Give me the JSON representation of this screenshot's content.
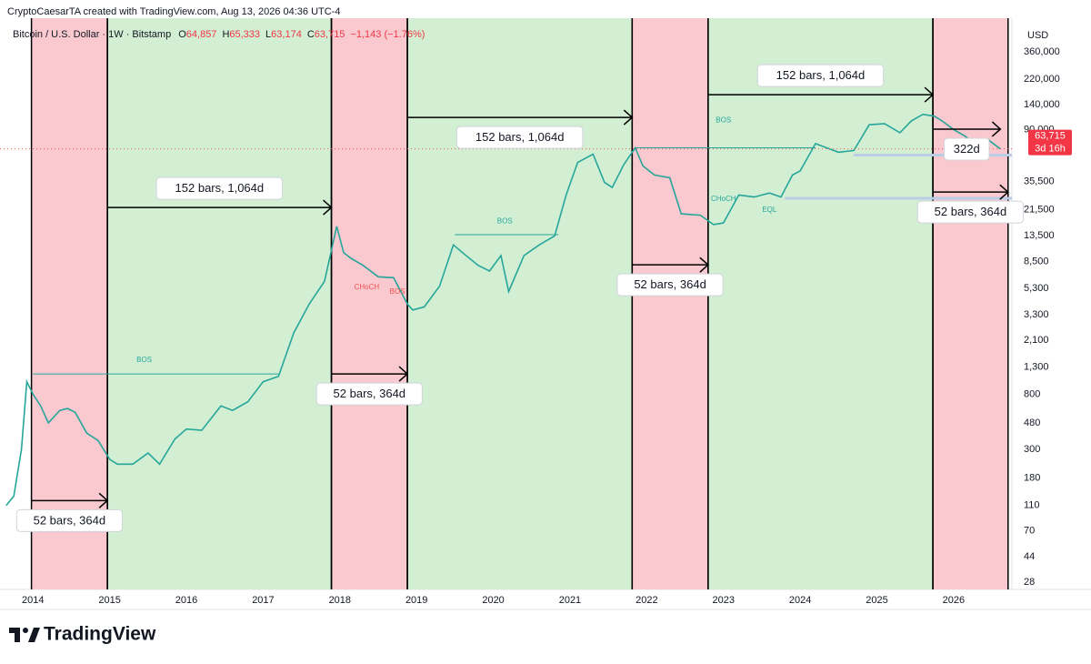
{
  "header": "CryptoCaesarTA created with TradingView.com, Aug 13, 2026 04:36 UTC-4",
  "footer": "TradingView",
  "chart_data": {
    "type": "line",
    "title": "Bitcoin / U.S. Dollar · 1W · Bitstamp",
    "ohlc": [
      {
        "key": "O",
        "value": "64,857"
      },
      {
        "key": "H",
        "value": "65,333"
      },
      {
        "key": "L",
        "value": "63,174"
      },
      {
        "key": "C",
        "value": "63,715"
      }
    ],
    "change": "−1,143 (−1.76%)",
    "axis_unit": "USD",
    "yscale": "log",
    "grid": false,
    "color": "#26a69a",
    "xlim": [
      2013.57,
      2026.76
    ],
    "xticks": [
      2014,
      2015,
      2016,
      2017,
      2018,
      2019,
      2020,
      2021,
      2022,
      2023,
      2024,
      2025,
      2026
    ],
    "ylim": [
      24.6,
      656000
    ],
    "yticks": [
      28,
      44,
      70,
      110,
      180,
      300,
      480,
      800,
      {
        "value": 1300,
        "label": "1,300"
      },
      {
        "value": 2100,
        "label": "2,100"
      },
      {
        "value": 3300,
        "label": "3,300"
      },
      {
        "value": 5300,
        "label": "5,300"
      },
      {
        "value": 8500,
        "label": "8,500"
      },
      {
        "value": 13500,
        "label": "13,500"
      },
      {
        "value": 21500,
        "label": "21,500"
      },
      {
        "value": 35500,
        "label": "35,500"
      },
      {
        "value": 90000,
        "label": "90,000"
      },
      {
        "value": 140000,
        "label": "140,000"
      },
      {
        "value": 220000,
        "label": "220,000"
      },
      {
        "value": 360000,
        "label": "360,000"
      }
    ],
    "x": [
      2013.65,
      2013.75,
      2013.85,
      2013.92,
      2014.0,
      2014.1,
      2014.2,
      2014.35,
      2014.45,
      2014.55,
      2014.7,
      2014.85,
      2015.0,
      2015.1,
      2015.3,
      2015.5,
      2015.65,
      2015.85,
      2016.0,
      2016.2,
      2016.45,
      2016.6,
      2016.8,
      2017.0,
      2017.2,
      2017.4,
      2017.6,
      2017.8,
      2017.96,
      2018.05,
      2018.15,
      2018.3,
      2018.5,
      2018.7,
      2018.88,
      2018.95,
      2019.1,
      2019.3,
      2019.48,
      2019.6,
      2019.8,
      2019.95,
      2020.1,
      2020.2,
      2020.4,
      2020.6,
      2020.8,
      2020.95,
      2021.1,
      2021.3,
      2021.45,
      2021.55,
      2021.7,
      2021.85,
      2021.95,
      2022.1,
      2022.3,
      2022.45,
      2022.7,
      2022.87,
      2023.0,
      2023.2,
      2023.4,
      2023.6,
      2023.75,
      2023.9,
      2024.0,
      2024.2,
      2024.5,
      2024.7,
      2024.9,
      2025.1,
      2025.3,
      2025.45,
      2025.6,
      2025.75,
      2025.85,
      2026.0,
      2026.15,
      2026.3,
      2026.45,
      2026.61
    ],
    "values": [
      110,
      130,
      300,
      1000,
      800,
      650,
      480,
      600,
      620,
      580,
      400,
      350,
      250,
      230,
      230,
      280,
      230,
      360,
      430,
      420,
      650,
      600,
      700,
      1000,
      1100,
      2400,
      4000,
      6000,
      16000,
      10000,
      9000,
      8000,
      6500,
      6400,
      4000,
      3600,
      3800,
      5500,
      11500,
      10000,
      8000,
      7200,
      9500,
      5000,
      9500,
      11500,
      13500,
      28000,
      50000,
      58000,
      35000,
      32000,
      48000,
      65000,
      47000,
      40000,
      38000,
      20000,
      19500,
      16500,
      17000,
      28000,
      27000,
      29000,
      27000,
      40000,
      43000,
      70000,
      60000,
      62000,
      98000,
      100000,
      85000,
      105000,
      118000,
      114000,
      105000,
      90000,
      80000,
      68000,
      75000,
      63715
    ],
    "countdown": "3d 16h",
    "zones": [
      {
        "start": 2013.98,
        "end": 2014.97,
        "color": "#f9c9cf"
      },
      {
        "start": 2014.97,
        "end": 2017.89,
        "color": "#d3efd3"
      },
      {
        "start": 2017.89,
        "end": 2018.88,
        "color": "#f9c9cf"
      },
      {
        "start": 2018.88,
        "end": 2021.81,
        "color": "#d3efd3"
      },
      {
        "start": 2021.81,
        "end": 2022.8,
        "color": "#f9c9cf"
      },
      {
        "start": 2022.8,
        "end": 2025.73,
        "color": "#d3efd3"
      },
      {
        "start": 2025.73,
        "end": 2026.71,
        "color": "#f9c9cf"
      }
    ],
    "arrows": [
      {
        "start": 2013.98,
        "end": 2014.97,
        "price": 120,
        "label": "52 bars, 364d",
        "label_side": "below"
      },
      {
        "start": 2014.97,
        "end": 2017.89,
        "price": 22400,
        "label": "152 bars, 1,064d",
        "label_side": "above"
      },
      {
        "start": 2017.89,
        "end": 2018.88,
        "price": 1150,
        "label": "52 bars, 364d",
        "label_side": "below"
      },
      {
        "start": 2018.88,
        "end": 2021.81,
        "price": 111700,
        "label": "152 bars, 1,064d",
        "label_side": "below"
      },
      {
        "start": 2021.81,
        "end": 2022.8,
        "price": 8050,
        "label": "52 bars, 364d",
        "label_side": "below"
      },
      {
        "start": 2022.8,
        "end": 2025.73,
        "price": 167500,
        "label": "152 bars, 1,064d",
        "label_side": "above"
      },
      {
        "start": 2025.73,
        "end": 2026.71,
        "price": 29500,
        "label": "52 bars, 364d",
        "label_side": "below"
      },
      {
        "start": 2025.73,
        "end": 2026.61,
        "price": 90600,
        "label": "322d",
        "label_side": "below"
      }
    ],
    "levels": [
      {
        "start": 2014.0,
        "end": 2017.2,
        "price": 1150,
        "color": "#26a69a"
      },
      {
        "start": 2019.5,
        "end": 2020.85,
        "price": 13800,
        "color": "#26a69a"
      },
      {
        "start": 2021.85,
        "end": 2024.2,
        "price": 65000,
        "color": "#26a69a"
      },
      {
        "start": 2024.7,
        "end": 2026.9,
        "price": 57000,
        "color": "#b9cde6"
      },
      {
        "start": 2023.8,
        "end": 2026.9,
        "price": 26400,
        "color": "#b9cde6"
      }
    ],
    "structure_labels": [
      {
        "text": "BOS",
        "x": 2015.45,
        "price": 1470,
        "color": "#26a69a"
      },
      {
        "text": "BOS",
        "x": 2020.15,
        "price": 17500,
        "color": "#26a69a"
      },
      {
        "text": "BOS",
        "x": 2023.0,
        "price": 105700,
        "color": "#26a69a"
      },
      {
        "text": "CHoCH",
        "x": 2018.35,
        "price": 5370,
        "color": "#ef5350"
      },
      {
        "text": "BOS",
        "x": 2018.75,
        "price": 4950,
        "color": "#ef5350"
      },
      {
        "text": "CHoCH",
        "x": 2023.0,
        "price": 26000,
        "color": "#26a69a"
      },
      {
        "text": "EQL",
        "x": 2023.6,
        "price": 21400,
        "color": "#26a69a"
      }
    ]
  }
}
